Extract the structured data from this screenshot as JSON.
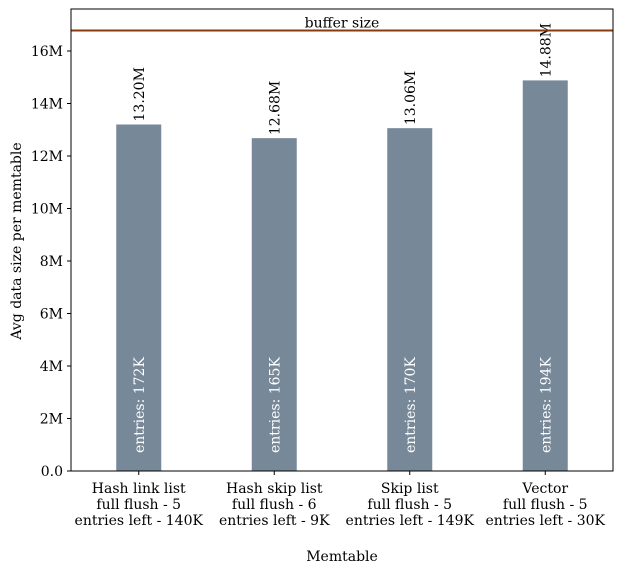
{
  "chart_data": {
    "type": "bar",
    "xlabel": "Memtable",
    "ylabel": "Avg data size per memtable",
    "ylim": [
      0,
      17.6
    ],
    "yticks": [
      0,
      2,
      4,
      6,
      8,
      10,
      12,
      14,
      16
    ],
    "ytick_labels": [
      "0.0",
      "2M",
      "4M",
      "6M",
      "8M",
      "10M",
      "12M",
      "14M",
      "16M"
    ],
    "categories": [
      [
        "Hash link list",
        "full flush - 5",
        "entries left - 140K"
      ],
      [
        "Hash skip list",
        "full flush - 6",
        "entries left - 9K"
      ],
      [
        "Skip list",
        "full flush - 5",
        "entries left - 149K"
      ],
      [
        "Vector",
        "full flush - 5",
        "entries left - 30K"
      ]
    ],
    "values": [
      13.2,
      12.68,
      13.06,
      14.88
    ],
    "value_labels": [
      "13.20M",
      "12.68M",
      "13.06M",
      "14.88M"
    ],
    "inner_labels": [
      "entries: 172K",
      "entries: 165K",
      "entries: 170K",
      "entries: 194K"
    ],
    "reference_line": {
      "label": "buffer size",
      "value": 16.78,
      "color": "#8b3a0f"
    },
    "bar_color": "#778899",
    "grid": false
  }
}
